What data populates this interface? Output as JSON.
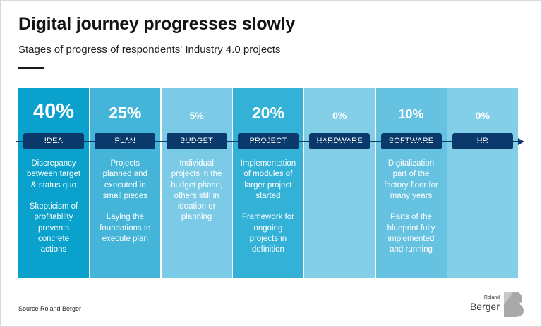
{
  "header": {
    "title": "Digital journey progresses slowly",
    "subtitle": "Stages of progress of respondents' Industry 4.0 projects"
  },
  "chart_data": {
    "type": "table",
    "title": "Digital journey progresses slowly",
    "subtitle": "Stages of progress of respondents' Industry 4.0 projects",
    "categories": [
      "IDEA",
      "PLAN",
      "BUDGET",
      "PROJECT",
      "HARDWARE",
      "SOFTWARE",
      "HR"
    ],
    "values": [
      40,
      25,
      5,
      20,
      0,
      10,
      0
    ],
    "unit": "%",
    "stages": [
      {
        "label": "IDEA",
        "value": 40,
        "value_text": "40%",
        "color": "#0aa2cc",
        "description": "Discrepancy\nbetween target\n& status quo\n\nSkepticism of\nprofitability\nprevents\nconcrete\nactions"
      },
      {
        "label": "PLAN",
        "value": 25,
        "value_text": "25%",
        "color": "#44b5d8",
        "description": "Projects\nplanned and\nexecuted in\nsmall pieces\n\nLaying the\nfoundations to\nexecute plan"
      },
      {
        "label": "BUDGET",
        "value": 5,
        "value_text": "5%",
        "color": "#7ccbe6",
        "description": "Individual\nprojects in the\nbudget phase,\nothers still in\nideation or\nplanning"
      },
      {
        "label": "PROJECT",
        "value": 20,
        "value_text": "20%",
        "color": "#33b1d6",
        "description": "Implementation\nof modules of\nlarger project\nstarted\n\nFramework for\nongoing\nprojects in\ndefinition"
      },
      {
        "label": "HARDWARE",
        "value": 0,
        "value_text": "0%",
        "color": "#83cfe8",
        "description": ""
      },
      {
        "label": "SOFTWARE",
        "value": 10,
        "value_text": "10%",
        "color": "#66c2e1",
        "description": "Digitalization\npart of the\nfactory floor for\nmany years\n\nParts of the\nblueprint fully\nimplemented\nand running"
      },
      {
        "label": "HR",
        "value": 0,
        "value_text": "0%",
        "color": "#83cfe8",
        "description": ""
      }
    ]
  },
  "footer": {
    "source": "Source Roland Berger",
    "logo_small": "Roland",
    "logo_big": "Berger"
  },
  "colors": {
    "label_bg": "#0a3a6b",
    "title": "#141414",
    "logo_mark": "#a9a9a9"
  }
}
